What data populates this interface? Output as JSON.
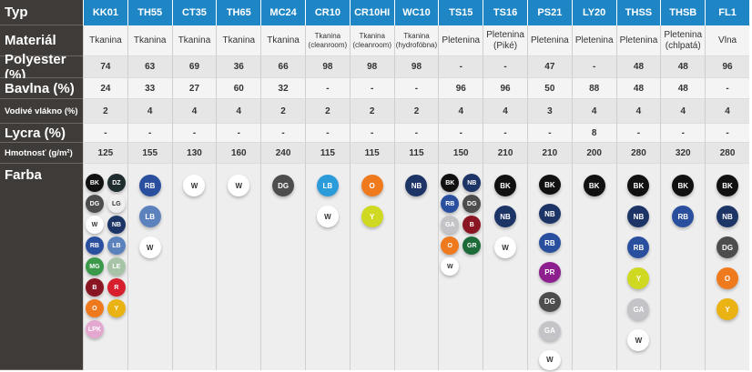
{
  "colors": {
    "header": "#1f86c6",
    "label_bg": "#3e3b39"
  },
  "labels": {
    "typ": "Typ",
    "material": "Materiál",
    "polyester": "Polyester (%)",
    "bavlna": "Bavlna (%)",
    "vodive": "Vodivé vlákno (%)",
    "lycra": "Lycra (%)",
    "hmotnost": "Hmotnosť (g/m²)",
    "farba": "Farba"
  },
  "swatch_colors": {
    "BK": "#111111",
    "DZ": "#1f2d30",
    "DG": "#4d4d4d",
    "LG": "#eeeeee",
    "W": "#ffffff",
    "NB": "#1c3466",
    "RB": "#2a4f9e",
    "LB": "#5b82bd",
    "LB2": "#2b9bd9",
    "MG": "#3a9a4a",
    "LE": "#a8c4a6",
    "B": "#8a1624",
    "R": "#d81f2e",
    "O": "#ef7a1e",
    "Y": "#eab213",
    "Y2": "#cfd921",
    "LPK": "#e3a7d0",
    "GA": "#c4c4c8",
    "GR": "#1e6b3a",
    "PR": "#8e1f8f"
  },
  "products": [
    {
      "typ": "KK01",
      "material": "Tkanina",
      "polyester": "74",
      "bavlna": "24",
      "vodive": "2",
      "lycra": "-",
      "hmotnost": "125",
      "farby": [
        "BK",
        "DZ",
        "DG",
        "LG",
        "W",
        "NB",
        "RB",
        "LB",
        "MG",
        "LE",
        "B",
        "R",
        "O",
        "Y",
        "LPK"
      ]
    },
    {
      "typ": "TH55",
      "material": "Tkanina",
      "polyester": "63",
      "bavlna": "33",
      "vodive": "4",
      "lycra": "-",
      "hmotnost": "155",
      "farby": [
        "RB",
        "LB",
        "W"
      ]
    },
    {
      "typ": "CT35",
      "material": "Tkanina",
      "polyester": "69",
      "bavlna": "27",
      "vodive": "4",
      "lycra": "-",
      "hmotnost": "130",
      "farby": [
        "W"
      ]
    },
    {
      "typ": "TH65",
      "material": "Tkanina",
      "polyester": "36",
      "bavlna": "60",
      "vodive": "4",
      "lycra": "-",
      "hmotnost": "160",
      "farby": [
        "W"
      ]
    },
    {
      "typ": "MC24",
      "material": "Tkanina",
      "polyester": "66",
      "bavlna": "32",
      "vodive": "2",
      "lycra": "-",
      "hmotnost": "240",
      "farby": [
        "DG"
      ]
    },
    {
      "typ": "CR10",
      "material": "Tkanina (cleanroom)",
      "polyester": "98",
      "bavlna": "-",
      "vodive": "2",
      "lycra": "-",
      "hmotnost": "115",
      "farby": [
        "LB2:LB",
        "W"
      ]
    },
    {
      "typ": "CR10HI",
      "material": "Tkanina (cleanroom)",
      "polyester": "98",
      "bavlna": "-",
      "vodive": "2",
      "lycra": "-",
      "hmotnost": "115",
      "farby": [
        "O",
        "Y2:Y"
      ]
    },
    {
      "typ": "WC10",
      "material": "Tkanina (hydrofóbna)",
      "polyester": "98",
      "bavlna": "-",
      "vodive": "2",
      "lycra": "-",
      "hmotnost": "115",
      "farby": [
        "NB"
      ]
    },
    {
      "typ": "TS15",
      "material": "Pletenina",
      "polyester": "-",
      "bavlna": "96",
      "vodive": "4",
      "lycra": "-",
      "hmotnost": "150",
      "farby": [
        "BK",
        "NB",
        "RB",
        "DG",
        "GA",
        "B",
        "O",
        "GR",
        "W"
      ]
    },
    {
      "typ": "TS16",
      "material": "Pletenina (Piké)",
      "polyester": "-",
      "bavlna": "96",
      "vodive": "4",
      "lycra": "-",
      "hmotnost": "210",
      "farby": [
        "BK",
        "NB",
        "W"
      ]
    },
    {
      "typ": "PS21",
      "material": "Pletenina",
      "polyester": "47",
      "bavlna": "50",
      "vodive": "3",
      "lycra": "-",
      "hmotnost": "210",
      "farby": [
        "BK",
        "NB",
        "RB",
        "PR",
        "DG",
        "GA",
        "W"
      ]
    },
    {
      "typ": "LY20",
      "material": "Pletenina",
      "polyester": "-",
      "bavlna": "88",
      "vodive": "4",
      "lycra": "8",
      "hmotnost": "200",
      "farby": [
        "BK"
      ]
    },
    {
      "typ": "THSS",
      "material": "Pletenina",
      "polyester": "48",
      "bavlna": "48",
      "vodive": "4",
      "lycra": "-",
      "hmotnost": "280",
      "farby": [
        "BK",
        "NB",
        "RB",
        "Y2:Y",
        "GA",
        "W"
      ]
    },
    {
      "typ": "THSB",
      "material": "Pletenina (chlpatá)",
      "polyester": "48",
      "bavlna": "48",
      "vodive": "4",
      "lycra": "-",
      "hmotnost": "320",
      "farby": [
        "BK",
        "RB"
      ]
    },
    {
      "typ": "FL1",
      "material": "Vlna",
      "polyester": "96",
      "bavlna": "-",
      "vodive": "4",
      "lycra": "-",
      "hmotnost": "280",
      "farby": [
        "BK",
        "NB",
        "DG",
        "O",
        "Y"
      ]
    }
  ]
}
